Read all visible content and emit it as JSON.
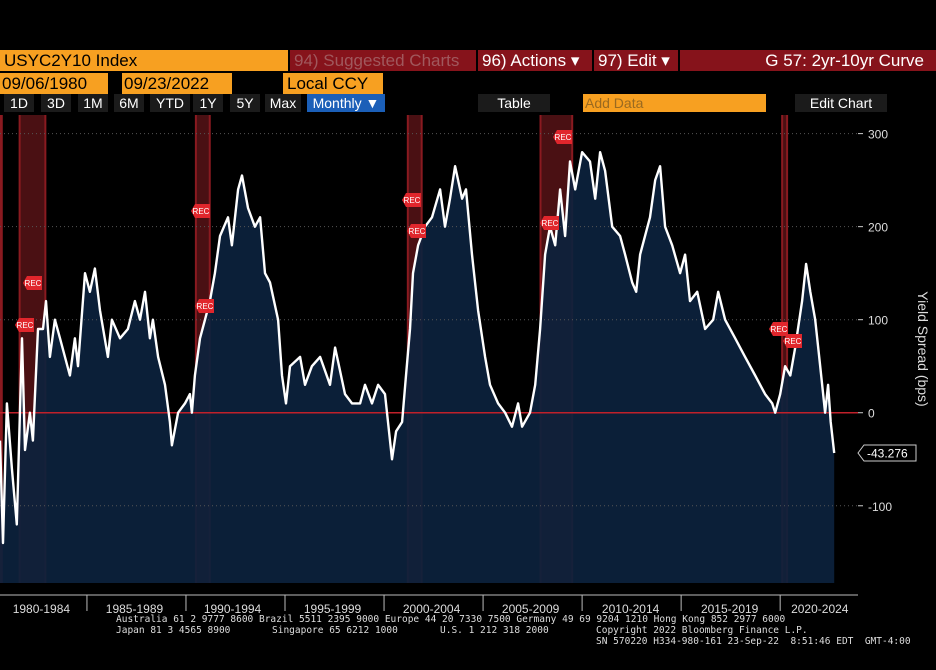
{
  "header": {
    "ticker": "USYC2Y10 Index",
    "suggested": "94) Suggested Charts",
    "actions": "96) Actions ▾",
    "edit": "97) Edit ▾",
    "title": "G 57: 2yr-10yr Curve"
  },
  "controls": {
    "start_date": "09/06/1980",
    "end_date": "09/23/2022",
    "currency": "Local CCY",
    "periods": [
      "1D",
      "3D",
      "1M",
      "6M",
      "YTD",
      "1Y",
      "5Y",
      "Max"
    ],
    "frequency": "Monthly ▼",
    "table": "Table",
    "add_data": "Add Data",
    "edit_chart": "Edit Chart"
  },
  "chart_data": {
    "type": "line",
    "y_label": "Yield Spread (bps)",
    "x": [
      1980.61,
      1980.76,
      1980.96,
      1981.21,
      1981.46,
      1981.72,
      1981.87,
      1982.12,
      1982.27,
      1982.53,
      1982.78,
      1982.93,
      1983.13,
      1983.38,
      1983.64,
      1984.14,
      1984.39,
      1984.55,
      1984.9,
      1985.15,
      1985.4,
      1985.66,
      1986.06,
      1986.26,
      1986.67,
      1987.07,
      1987.42,
      1987.68,
      1987.93,
      1988.18,
      1988.33,
      1988.59,
      1988.94,
      1989.19,
      1989.29,
      1989.6,
      1989.95,
      1990.2,
      1990.3,
      1990.45,
      1990.71,
      1990.96,
      1991.21,
      1991.46,
      1991.72,
      1992.12,
      1992.32,
      1992.63,
      1992.83,
      1993.13,
      1993.48,
      1993.74,
      1993.99,
      1994.24,
      1994.65,
      1994.85,
      1995.05,
      1995.25,
      1995.76,
      1996.01,
      1996.36,
      1996.77,
      1997.27,
      1997.53,
      1998.03,
      1998.38,
      1998.79,
      1999.04,
      1999.39,
      1999.7,
      2000.05,
      2000.2,
      2000.4,
      2000.61,
      2000.91,
      2001.11,
      2001.31,
      2001.46,
      2001.72,
      2002.07,
      2002.42,
      2002.83,
      2003.08,
      2003.33,
      2003.59,
      2003.94,
      2004.14,
      2004.44,
      2004.75,
      2005.1,
      2005.35,
      2005.76,
      2006.11,
      2006.46,
      2006.77,
      2006.97,
      2007.37,
      2007.63,
      2007.88,
      2008.13,
      2008.38,
      2008.64,
      2008.89,
      2009.14,
      2009.39,
      2009.65,
      2010.0,
      2010.4,
      2010.66,
      2010.91,
      2011.16,
      2011.52,
      2011.92,
      2012.17,
      2012.53,
      2012.73,
      2012.93,
      2013.43,
      2013.69,
      2013.94,
      2014.19,
      2014.55,
      2014.95,
      2015.2,
      2015.45,
      2015.81,
      2016.21,
      2016.62,
      2016.87,
      2017.22,
      2017.73,
      2018.23,
      2018.74,
      2019.24,
      2019.6,
      2019.75,
      2020.0,
      2020.25,
      2020.51,
      2020.76,
      2021.11,
      2021.31,
      2021.52,
      2021.77,
      2022.02,
      2022.27,
      2022.42,
      2022.55,
      2022.73
    ],
    "values": [
      -30,
      -140,
      10,
      -60,
      -120,
      80,
      -40,
      0,
      -30,
      90,
      90,
      120,
      60,
      100,
      80,
      40,
      80,
      50,
      150,
      130,
      155,
      110,
      60,
      100,
      80,
      90,
      120,
      100,
      130,
      80,
      100,
      60,
      30,
      -10,
      -35,
      0,
      10,
      20,
      0,
      40,
      80,
      100,
      120,
      150,
      190,
      210,
      180,
      240,
      255,
      220,
      200,
      210,
      150,
      140,
      100,
      40,
      10,
      50,
      60,
      30,
      50,
      60,
      30,
      70,
      20,
      10,
      10,
      30,
      10,
      30,
      20,
      -10,
      -50,
      -20,
      -10,
      40,
      90,
      150,
      180,
      200,
      210,
      240,
      200,
      230,
      265,
      230,
      240,
      170,
      110,
      60,
      30,
      10,
      0,
      -15,
      10,
      -15,
      0,
      30,
      90,
      170,
      200,
      180,
      240,
      190,
      270,
      240,
      280,
      270,
      230,
      280,
      260,
      200,
      190,
      170,
      140,
      130,
      170,
      210,
      250,
      265,
      200,
      180,
      150,
      170,
      120,
      130,
      90,
      100,
      130,
      100,
      80,
      60,
      40,
      20,
      10,
      0,
      20,
      50,
      40,
      70,
      120,
      160,
      130,
      100,
      50,
      0,
      30,
      -10,
      -43.276
    ],
    "last_label": "-43.276",
    "ylim": [
      -183,
      320
    ],
    "yticks": [
      300,
      200,
      100,
      0,
      -100
    ],
    "xlim": [
      1980.61,
      2023.93
    ],
    "xticks": [
      1985,
      1990,
      1995,
      2000,
      2005,
      2010,
      2015,
      2020
    ],
    "x_period_labels": [
      {
        "value": 1982.7,
        "label": "1980-1984"
      },
      {
        "value": 1987.4,
        "label": "1985-1989"
      },
      {
        "value": 1992.35,
        "label": "1990-1994"
      },
      {
        "value": 1997.4,
        "label": "1995-1999"
      },
      {
        "value": 2002.4,
        "label": "2000-2004"
      },
      {
        "value": 2007.4,
        "label": "2005-2009"
      },
      {
        "value": 2012.45,
        "label": "2010-2014"
      },
      {
        "value": 2017.45,
        "label": "2015-2019"
      },
      {
        "value": 2022.0,
        "label": "2020-2024"
      }
    ],
    "recessions": [
      [
        1980.61,
        1980.7
      ],
      [
        1981.6,
        1982.9
      ],
      [
        1990.5,
        1991.2
      ],
      [
        2001.2,
        2001.9
      ],
      [
        2007.9,
        2009.5
      ],
      [
        2020.1,
        2020.35
      ]
    ],
    "annotations": [
      "REC",
      "REC",
      "REC",
      "REC",
      "REC",
      "REC",
      "REC",
      "REC",
      "REC",
      "REC"
    ],
    "color": "#ffffff",
    "fill": "#0c223d",
    "zero_line": "#c0202a",
    "grid": true
  },
  "footer": {
    "line1": "Australia 61 2 9777 8600 Brazil 5511 2395 9000 Europe 44 20 7330 7500 Germany 49 69 9204 1210 Hong Kong 852 2977 6000",
    "line2a": "Japan 81 3 4565 8900",
    "line2b": "Singapore 65 6212 1000",
    "line2c": "U.S. 1 212 318 2000",
    "line2d": "Copyright 2022 Bloomberg Finance L.P.",
    "line3": "SN 570220 H334-980-161 23-Sep-22  8:51:46 EDT  GMT-4:00"
  }
}
